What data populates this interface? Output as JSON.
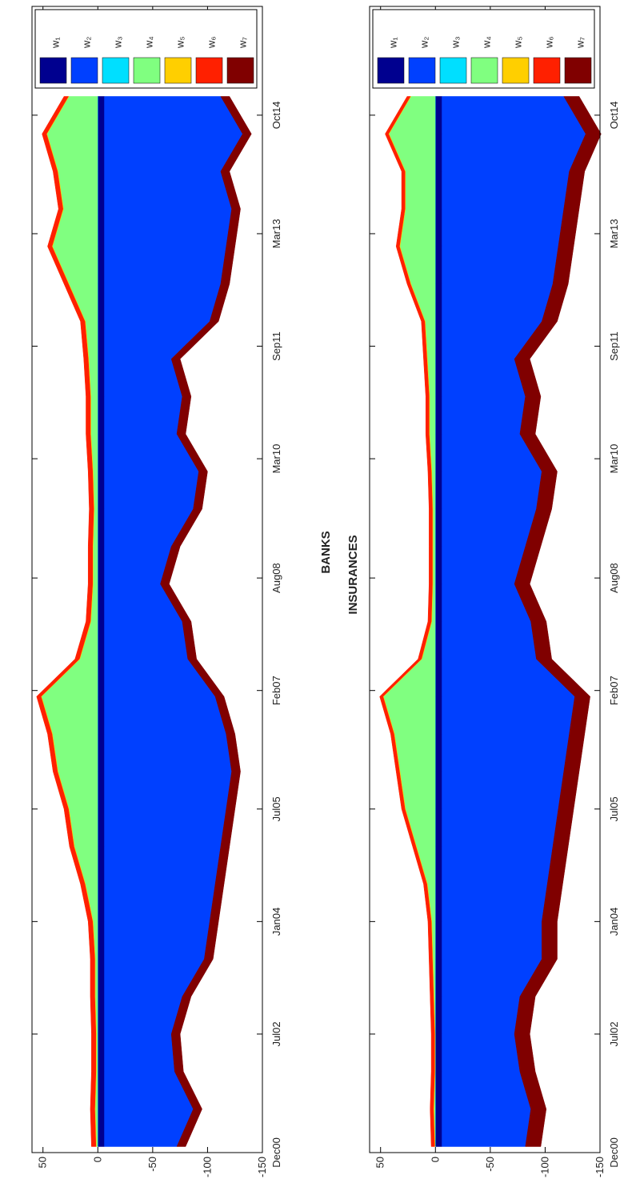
{
  "chart_data": [
    {
      "type": "area",
      "title": "BANKS",
      "x": [
        2001.0,
        2001.5,
        2002.0,
        2002.5,
        2003.0,
        2003.5,
        2004.0,
        2004.5,
        2005.0,
        2005.5,
        2006.0,
        2006.5,
        2007.0,
        2007.5,
        2008.0,
        2008.5,
        2009.0,
        2009.5,
        2010.0,
        2010.5,
        2011.0,
        2011.5,
        2012.0,
        2012.5,
        2013.0,
        2013.5,
        2014.0,
        2014.5,
        2015.0
      ],
      "xlim": [
        2000.92,
        2016.2
      ],
      "xticks": [
        {
          "value": 2000.92,
          "label": "Dec00"
        },
        {
          "value": 2002.5,
          "label": "Jul02"
        },
        {
          "value": 2004.0,
          "label": "Jan04"
        },
        {
          "value": 2005.5,
          "label": "Jul05"
        },
        {
          "value": 2007.08,
          "label": "Feb07"
        },
        {
          "value": 2008.58,
          "label": "Aug08"
        },
        {
          "value": 2010.17,
          "label": "Mar10"
        },
        {
          "value": 2011.67,
          "label": "Sep11"
        },
        {
          "value": 2013.17,
          "label": "Mar13"
        },
        {
          "value": 2014.75,
          "label": "Oct14"
        }
      ],
      "ylim": [
        -150,
        60
      ],
      "yticks": [
        -150,
        -100,
        -50,
        0,
        50
      ],
      "grid": false,
      "legend": "top-right",
      "series": [
        {
          "name": "w₁",
          "color": "#00008f",
          "values": [
            -6,
            -6,
            -6,
            -6,
            -6,
            -6,
            -6,
            -6,
            -6,
            -6,
            -6,
            -6,
            -6,
            -6,
            -6,
            -6,
            -6,
            -6,
            -6,
            -6,
            -6,
            -6,
            -6,
            -6,
            -6,
            -6,
            -6,
            -6,
            -6
          ]
        },
        {
          "name": "w₂",
          "color": "#0040ff",
          "values": [
            -66,
            -81,
            -64,
            -61,
            -71,
            -91,
            -96,
            -101,
            -106,
            -111,
            -116,
            -111,
            -101,
            -76,
            -71,
            -51,
            -61,
            -81,
            -86,
            -66,
            -71,
            -61,
            -96,
            -106,
            -111,
            -116,
            -106,
            -126,
            -106
          ]
        },
        {
          "name": "w₃",
          "color": "#00dfff",
          "values": [
            0.3,
            0.3,
            0.3,
            0.3,
            0.3,
            0.3,
            0.3,
            0.3,
            0.3,
            0.3,
            0.3,
            0.3,
            0.3,
            0.3,
            0.3,
            0.3,
            0.3,
            0.3,
            0.3,
            0.3,
            0.3,
            0.3,
            0.3,
            0.3,
            0.3,
            0.3,
            0.3,
            0.3,
            0.3
          ]
        },
        {
          "name": "w₄",
          "color": "#80ff80",
          "values": [
            1,
            2,
            1,
            1,
            2,
            2,
            4,
            11,
            21,
            26,
            36,
            41,
            51,
            16,
            6,
            4,
            4,
            3,
            4,
            6,
            6,
            8,
            11,
            26,
            41,
            31,
            36,
            46,
            26
          ]
        },
        {
          "name": "w₅",
          "color": "#ffcf00",
          "values": [
            0.5,
            0.5,
            0.5,
            0.5,
            0.5,
            0.5,
            0.5,
            0.5,
            0.5,
            0.5,
            0.5,
            0.5,
            0.5,
            0.5,
            0.5,
            0.5,
            0.5,
            0.5,
            0.5,
            0.5,
            0.5,
            0.5,
            0.5,
            0.5,
            0.5,
            0.5,
            0.5,
            0.5,
            0.5
          ]
        },
        {
          "name": "w₆",
          "color": "#ff2000",
          "values": [
            4,
            4,
            4,
            4,
            4,
            4,
            4,
            4,
            4,
            4,
            4,
            4,
            4,
            4,
            4,
            4,
            4,
            4,
            4,
            4,
            4,
            4,
            4,
            4,
            4,
            4,
            4,
            4,
            4
          ]
        },
        {
          "name": "w₇",
          "color": "#800000",
          "values": [
            -8,
            -8,
            -8,
            -8,
            -8,
            -8,
            -8,
            -8,
            -8,
            -8,
            -8,
            -8,
            -8,
            -8,
            -8,
            -8,
            -8,
            -8,
            -8,
            -8,
            -8,
            -8,
            -8,
            -8,
            -8,
            -8,
            -8,
            -8,
            -8
          ]
        }
      ]
    },
    {
      "type": "area",
      "title": "INSURANCES",
      "x": [
        2001.0,
        2001.5,
        2002.0,
        2002.5,
        2003.0,
        2003.5,
        2004.0,
        2004.5,
        2005.0,
        2005.5,
        2006.0,
        2006.5,
        2007.0,
        2007.5,
        2008.0,
        2008.5,
        2009.0,
        2009.5,
        2010.0,
        2010.5,
        2011.0,
        2011.5,
        2012.0,
        2012.5,
        2013.0,
        2013.5,
        2014.0,
        2014.5,
        2015.0
      ],
      "xlim": [
        2000.92,
        2016.2
      ],
      "xticks": [
        {
          "value": 2000.92,
          "label": "Dec00"
        },
        {
          "value": 2002.5,
          "label": "Jul02"
        },
        {
          "value": 2004.0,
          "label": "Jan04"
        },
        {
          "value": 2005.5,
          "label": "Jul05"
        },
        {
          "value": 2007.08,
          "label": "Feb07"
        },
        {
          "value": 2008.58,
          "label": "Aug08"
        },
        {
          "value": 2010.17,
          "label": "Mar10"
        },
        {
          "value": 2011.67,
          "label": "Sep11"
        },
        {
          "value": 2013.17,
          "label": "Mar13"
        },
        {
          "value": 2014.75,
          "label": "Oct14"
        }
      ],
      "ylim": [
        -150,
        60
      ],
      "yticks": [
        -150,
        -100,
        -50,
        0,
        50
      ],
      "grid": false,
      "legend": "top-right",
      "series": [
        {
          "name": "w₁",
          "color": "#00008f",
          "values": [
            -6,
            -6,
            -6,
            -6,
            -6,
            -6,
            -6,
            -6,
            -6,
            -6,
            -6,
            -6,
            -6,
            -6,
            -6,
            -6,
            -6,
            -6,
            -6,
            -6,
            -6,
            -6,
            -6,
            -6,
            -6,
            -6,
            -6,
            -6,
            -6
          ]
        },
        {
          "name": "w₂",
          "color": "#0040ff",
          "values": [
            -76,
            -81,
            -71,
            -66,
            -71,
            -91,
            -91,
            -96,
            -101,
            -106,
            -111,
            -116,
            -121,
            -86,
            -81,
            -66,
            -76,
            -86,
            -91,
            -71,
            -76,
            -66,
            -91,
            -101,
            -106,
            -111,
            -116,
            -131,
            -111
          ]
        },
        {
          "name": "w₃",
          "color": "#00dfff",
          "values": [
            0.3,
            0.3,
            0.3,
            0.3,
            0.3,
            0.3,
            0.3,
            0.3,
            0.3,
            0.3,
            0.3,
            0.3,
            0.3,
            0.3,
            0.3,
            0.3,
            0.3,
            0.3,
            0.3,
            0.3,
            0.3,
            0.3,
            0.3,
            0.3,
            0.3,
            0.3,
            0.3,
            0.3,
            0.3
          ]
        },
        {
          "name": "w₄",
          "color": "#80ff80",
          "values": [
            0,
            1,
            0,
            0,
            1,
            2,
            3,
            7,
            17,
            27,
            32,
            37,
            47,
            12,
            3,
            2,
            2,
            2,
            3,
            5,
            5,
            7,
            9,
            22,
            32,
            27,
            27,
            42,
            22
          ]
        },
        {
          "name": "w₅",
          "color": "#ffcf00",
          "values": [
            0.5,
            0.5,
            0.5,
            0.5,
            0.5,
            0.5,
            0.5,
            0.5,
            0.5,
            0.5,
            0.5,
            0.5,
            0.5,
            0.5,
            0.5,
            0.5,
            0.5,
            0.5,
            0.5,
            0.5,
            0.5,
            0.5,
            0.5,
            0.5,
            0.5,
            0.5,
            0.5,
            0.5,
            0.5
          ]
        },
        {
          "name": "w₆",
          "color": "#ff2000",
          "values": [
            3,
            3,
            3,
            3,
            3,
            3,
            3,
            3,
            3,
            3,
            3,
            3,
            3,
            3,
            3,
            3,
            3,
            3,
            3,
            3,
            3,
            3,
            3,
            3,
            3,
            3,
            3,
            3,
            3
          ]
        },
        {
          "name": "w₇",
          "color": "#800000",
          "values": [
            -14,
            -14,
            -14,
            -14,
            -14,
            -14,
            -14,
            -14,
            -14,
            -14,
            -14,
            -14,
            -14,
            -14,
            -14,
            -14,
            -14,
            -14,
            -14,
            -14,
            -14,
            -14,
            -14,
            -14,
            -14,
            -14,
            -14,
            -14,
            -14
          ]
        }
      ]
    }
  ]
}
